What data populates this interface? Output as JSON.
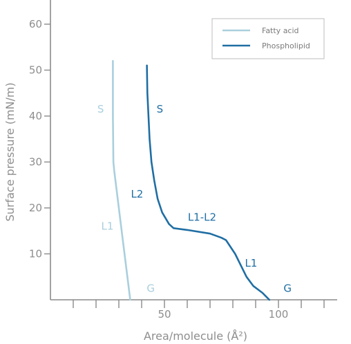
{
  "chart_data": {
    "type": "line",
    "xlabel": "Area/molecule (Å²)",
    "ylabel": "Surface pressure (mN/m)",
    "xlim": [
      0,
      122
    ],
    "ylim": [
      0,
      65
    ],
    "x_ticks_minor": [
      10,
      20,
      30,
      40,
      50,
      60,
      70,
      80,
      90,
      100,
      110,
      120
    ],
    "x_tick_labels": [
      {
        "value": 50,
        "label": "50"
      },
      {
        "value": 100,
        "label": "100"
      }
    ],
    "y_ticks": [
      {
        "value": 10,
        "label": "10"
      },
      {
        "value": 20,
        "label": "20"
      },
      {
        "value": 30,
        "label": "30"
      },
      {
        "value": 40,
        "label": "40"
      },
      {
        "value": 50,
        "label": "50"
      },
      {
        "value": 60,
        "label": "60"
      }
    ],
    "grid": false,
    "legend_position": "top-right",
    "series": [
      {
        "name": "Fatty acid",
        "color": "#a9cfdd",
        "points": [
          [
            35,
            0
          ],
          [
            31.5,
            14
          ],
          [
            28,
            28
          ],
          [
            27.6,
            30
          ],
          [
            27.4,
            40
          ],
          [
            27.4,
            52
          ]
        ],
        "phase_labels": [
          {
            "text": "S",
            "x": 22,
            "y": 41.5
          },
          {
            "text": "L1",
            "x": 25,
            "y": 16
          },
          {
            "text": "G",
            "x": 44,
            "y": 2.5
          }
        ]
      },
      {
        "name": "Phospholipid",
        "color": "#1f6ea3",
        "points": [
          [
            96,
            0
          ],
          [
            93,
            1.5
          ],
          [
            89,
            3
          ],
          [
            86,
            5
          ],
          [
            81,
            10
          ],
          [
            77,
            13
          ],
          [
            75,
            13.5
          ],
          [
            70,
            14.4
          ],
          [
            60,
            15.2
          ],
          [
            54,
            15.6
          ],
          [
            52,
            16.5
          ],
          [
            49,
            19
          ],
          [
            47,
            22
          ],
          [
            45.5,
            26
          ],
          [
            44.3,
            30
          ],
          [
            43.5,
            35
          ],
          [
            43,
            40
          ],
          [
            42.5,
            45
          ],
          [
            42.3,
            51
          ]
        ],
        "phase_labels": [
          {
            "text": "S",
            "x": 48,
            "y": 41.5
          },
          {
            "text": "L2",
            "x": 38,
            "y": 23
          },
          {
            "text": "L1-L2",
            "x": 66.5,
            "y": 18
          },
          {
            "text": "L1",
            "x": 88,
            "y": 8
          },
          {
            "text": "G",
            "x": 104,
            "y": 2.5
          }
        ]
      }
    ]
  }
}
